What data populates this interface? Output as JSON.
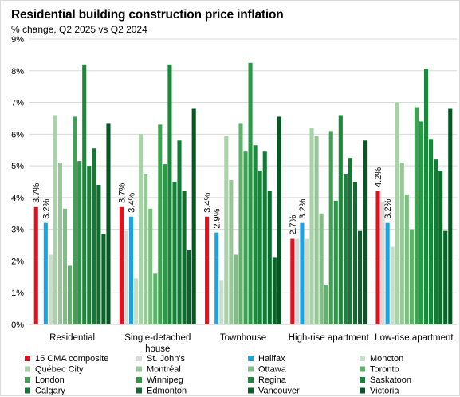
{
  "chart_data": {
    "type": "bar",
    "title": "Residential building construction price inflation",
    "subtitle": "% change, Q2 2025 vs Q2 2024",
    "xlabel": "",
    "ylabel": "",
    "ylim": [
      0,
      9
    ],
    "y_ticks": [
      "0%",
      "1%",
      "2%",
      "3%",
      "4%",
      "5%",
      "6%",
      "7%",
      "8%",
      "9%"
    ],
    "grid": true,
    "legend_position": "bottom",
    "categories": [
      "Residential",
      "Single-detached house",
      "Townhouse",
      "High-rise apartment",
      "Low-rise apartment"
    ],
    "category_lines": [
      [
        "Residential"
      ],
      [
        "Single-detached",
        "house"
      ],
      [
        "Townhouse"
      ],
      [
        "High-rise apartment"
      ],
      [
        "Low-rise apartment"
      ]
    ],
    "series": [
      {
        "name": "15 CMA composite",
        "color": "#e3101e",
        "values": [
          3.7,
          3.7,
          3.4,
          2.7,
          4.2
        ],
        "labels": [
          "3.7%",
          "3.7%",
          "3.4%",
          "2.7%",
          "4.2%"
        ]
      },
      {
        "name": "St. John's",
        "color": "#d9d9d9",
        "values": [
          0.0,
          2.95,
          0.0,
          2.7,
          3.85
        ]
      },
      {
        "name": "Halifax",
        "color": "#1fa3e0",
        "values": [
          3.2,
          3.4,
          2.9,
          3.2,
          3.2
        ],
        "labels": [
          "3.2%",
          "3.4%",
          "2.9%",
          "3.2%",
          "3.2%"
        ]
      },
      {
        "name": "Moncton",
        "color": "#c6dfc6",
        "values": [
          2.2,
          1.45,
          1.4,
          2.7,
          2.45
        ]
      },
      {
        "name": "Québec City",
        "color": "#a8d3a8",
        "values": [
          6.6,
          6.0,
          5.95,
          6.2,
          7.0
        ]
      },
      {
        "name": "Montréal",
        "color": "#98c898",
        "values": [
          5.1,
          4.75,
          4.55,
          5.95,
          5.1
        ]
      },
      {
        "name": "Ottawa",
        "color": "#7ebf84",
        "values": [
          3.65,
          3.65,
          2.2,
          3.5,
          4.1
        ]
      },
      {
        "name": "Toronto",
        "color": "#5fb36a",
        "values": [
          1.85,
          1.6,
          6.35,
          1.25,
          3.0
        ]
      },
      {
        "name": "London",
        "color": "#3fa252",
        "values": [
          6.55,
          6.3,
          5.45,
          6.1,
          6.85
        ]
      },
      {
        "name": "Winnipeg",
        "color": "#289a46",
        "values": [
          5.15,
          5.05,
          8.25,
          3.9,
          6.4
        ]
      },
      {
        "name": "Regina",
        "color": "#1a8a3a",
        "values": [
          8.2,
          8.2,
          5.65,
          6.6,
          8.05
        ]
      },
      {
        "name": "Saskatoon",
        "color": "#178539",
        "values": [
          5.0,
          4.5,
          4.85,
          4.75,
          5.85
        ]
      },
      {
        "name": "Calgary",
        "color": "#127a34",
        "values": [
          5.55,
          5.8,
          5.45,
          5.25,
          5.2
        ]
      },
      {
        "name": "Edmonton",
        "color": "#0e6e2e",
        "values": [
          4.4,
          4.2,
          4.2,
          4.5,
          4.85
        ]
      },
      {
        "name": "Vancouver",
        "color": "#0a6328",
        "values": [
          2.85,
          2.35,
          2.1,
          2.95,
          2.95
        ]
      },
      {
        "name": "Victoria",
        "color": "#075723",
        "values": [
          6.35,
          6.8,
          6.55,
          5.8,
          6.8
        ]
      }
    ]
  }
}
